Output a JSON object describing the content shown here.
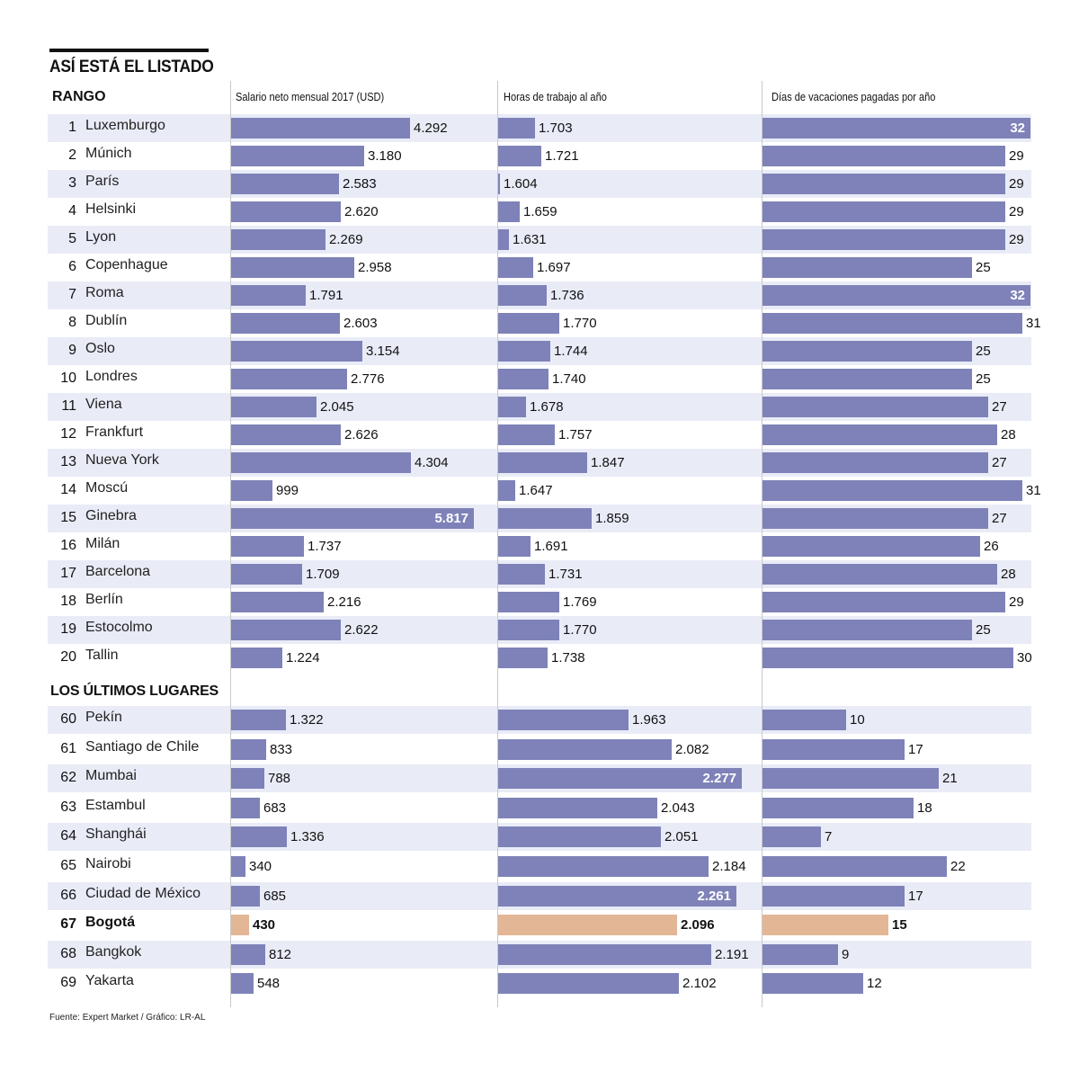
{
  "title": "ASÍ ESTÁ EL LISTADO",
  "rank_header": "RANGO",
  "section2_header": "LOS ÚLTIMOS LUGARES",
  "source": "Fuente: Expert Market / Gráfico: LR-AL",
  "colors": {
    "bar": "#7e82b8",
    "highlight": "#e3b796",
    "row_alt": "#e9ecf7"
  },
  "chart_data": {
    "type": "bar",
    "title": "ASÍ ESTÁ EL LISTADO",
    "orientation": "horizontal",
    "columns": [
      {
        "key": "salary",
        "label": "Salario neto mensual 2017 (USD)"
      },
      {
        "key": "hours",
        "label": "Horas de trabajo al año"
      },
      {
        "key": "vacation",
        "label": "Días de vacaciones pagadas por año"
      }
    ],
    "highlight": "Bogotá",
    "groups": [
      {
        "name": "top",
        "rows": [
          {
            "rank": 1,
            "city": "Luxemburgo",
            "salary": "4.292",
            "hours": "1.703",
            "vacation": "32"
          },
          {
            "rank": 2,
            "city": "Múnich",
            "salary": "3.180",
            "hours": "1.721",
            "vacation": "29"
          },
          {
            "rank": 3,
            "city": "París",
            "salary": "2.583",
            "hours": "1.604",
            "vacation": "29"
          },
          {
            "rank": 4,
            "city": "Helsinki",
            "salary": "2.620",
            "hours": "1.659",
            "vacation": "29"
          },
          {
            "rank": 5,
            "city": "Lyon",
            "salary": "2.269",
            "hours": "1.631",
            "vacation": "29"
          },
          {
            "rank": 6,
            "city": "Copenhague",
            "salary": "2.958",
            "hours": "1.697",
            "vacation": "25"
          },
          {
            "rank": 7,
            "city": "Roma",
            "salary": "1.791",
            "hours": "1.736",
            "vacation": "32"
          },
          {
            "rank": 8,
            "city": "Dublín",
            "salary": "2.603",
            "hours": "1.770",
            "vacation": "31"
          },
          {
            "rank": 9,
            "city": "Oslo",
            "salary": "3.154",
            "hours": "1.744",
            "vacation": "25"
          },
          {
            "rank": 10,
            "city": "Londres",
            "salary": "2.776",
            "hours": "1.740",
            "vacation": "25"
          },
          {
            "rank": 11,
            "city": "Viena",
            "salary": "2.045",
            "hours": "1.678",
            "vacation": "27"
          },
          {
            "rank": 12,
            "city": "Frankfurt",
            "salary": "2.626",
            "hours": "1.757",
            "vacation": "28"
          },
          {
            "rank": 13,
            "city": "Nueva York",
            "salary": "4.304",
            "hours": "1.847",
            "vacation": "27"
          },
          {
            "rank": 14,
            "city": "Moscú",
            "salary": "999",
            "hours": "1.647",
            "vacation": "31"
          },
          {
            "rank": 15,
            "city": "Ginebra",
            "salary": "5.817",
            "hours": "1.859",
            "vacation": "27"
          },
          {
            "rank": 16,
            "city": "Milán",
            "salary": "1.737",
            "hours": "1.691",
            "vacation": "26"
          },
          {
            "rank": 17,
            "city": "Barcelona",
            "salary": "1.709",
            "hours": "1.731",
            "vacation": "28"
          },
          {
            "rank": 18,
            "city": "Berlín",
            "salary": "2.216",
            "hours": "1.769",
            "vacation": "29"
          },
          {
            "rank": 19,
            "city": "Estocolmo",
            "salary": "2.622",
            "hours": "1.770",
            "vacation": "25"
          },
          {
            "rank": 20,
            "city": "Tallin",
            "salary": "1.224",
            "hours": "1.738",
            "vacation": "30"
          }
        ]
      },
      {
        "name": "bottom",
        "rows": [
          {
            "rank": 60,
            "city": "Pekín",
            "salary": "1.322",
            "hours": "1.963",
            "vacation": "10"
          },
          {
            "rank": 61,
            "city": "Santiago de Chile",
            "salary": "833",
            "hours": "2.082",
            "vacation": "17"
          },
          {
            "rank": 62,
            "city": "Mumbai",
            "salary": "788",
            "hours": "2.277",
            "vacation": "21"
          },
          {
            "rank": 63,
            "city": "Estambul",
            "salary": "683",
            "hours": "2.043",
            "vacation": "18"
          },
          {
            "rank": 64,
            "city": "Shanghái",
            "salary": "1.336",
            "hours": "2.051",
            "vacation": "7"
          },
          {
            "rank": 65,
            "city": "Nairobi",
            "salary": "340",
            "hours": "2.184",
            "vacation": "22"
          },
          {
            "rank": 66,
            "city": "Ciudad de México",
            "salary": "685",
            "hours": "2.261",
            "vacation": "17"
          },
          {
            "rank": 67,
            "city": "Bogotá",
            "salary": "430",
            "hours": "2.096",
            "vacation": "15"
          },
          {
            "rank": 68,
            "city": "Bangkok",
            "salary": "812",
            "hours": "2.191",
            "vacation": "9"
          },
          {
            "rank": 69,
            "city": "Yakarta",
            "salary": "548",
            "hours": "2.102",
            "vacation": "12"
          }
        ]
      }
    ]
  }
}
